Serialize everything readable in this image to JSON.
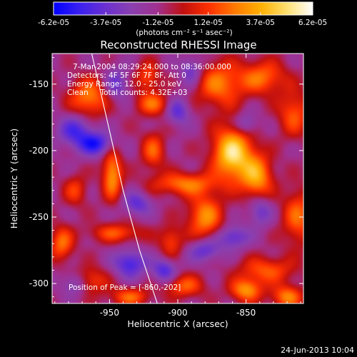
{
  "chart_data": {
    "type": "heatmap",
    "title": "Reconstructed RHESSI Image",
    "xlabel": "Heliocentric X (arcsec)",
    "ylabel": "Heliocentric Y (arcsec)",
    "xlim": [
      -992,
      -808
    ],
    "ylim": [
      -315,
      -127
    ],
    "xticks": [
      -950,
      -900,
      -850
    ],
    "yticks": [
      -150,
      -200,
      -250,
      -300
    ],
    "xtick_labels": [
      "-950",
      "-900",
      "-850"
    ],
    "ytick_labels": [
      "-150",
      "-200",
      "-250",
      "-300"
    ],
    "colorbar": {
      "min": -6.2e-05,
      "max": 6.2e-05,
      "ticks": [
        -6.2e-05,
        -3.7e-05,
        -1.2e-05,
        1.2e-05,
        3.7e-05,
        6.2e-05
      ],
      "tick_labels": [
        "-6.2e-05",
        "-3.7e-05",
        "-1.2e-05",
        "1.2e-05",
        "3.7e-05",
        "6.2e-05"
      ],
      "unit_label": "(photons cm⁻² s⁻¹ asec⁻²)"
    },
    "annotations": [
      "7-Mar-2004 08:29:24.000 to 08:36:00.000",
      "Detectors: 4F 5F 6F 7F 8F, Att 0",
      "Energy Range: 12.0 - 25.0 keV",
      "Clean     Total counts: 4.32E+03"
    ],
    "peak": {
      "label": "Position of Peak = [-860,-202]",
      "x": -860,
      "y": -202
    },
    "limb": [
      [
        -963,
        -127
      ],
      [
        -950,
        -185
      ],
      [
        -940,
        -230
      ],
      [
        -928,
        -275
      ],
      [
        -915,
        -315
      ]
    ],
    "sources": [
      {
        "x": -860,
        "y": -202,
        "sx": 10,
        "sy": 14,
        "a": 6.2e-05
      },
      {
        "x": -842,
        "y": -220,
        "sx": 8,
        "sy": 12,
        "a": 4.4e-05
      },
      {
        "x": -880,
        "y": -250,
        "sx": 9,
        "sy": 12,
        "a": 4e-05
      },
      {
        "x": -948,
        "y": -218,
        "sx": 5,
        "sy": 13,
        "a": 4.4e-05
      },
      {
        "x": -895,
        "y": -225,
        "sx": 16,
        "sy": 6,
        "a": 3.6e-05
      },
      {
        "x": -918,
        "y": -200,
        "sx": 6,
        "sy": 10,
        "a": 3e-05
      },
      {
        "x": -918,
        "y": -165,
        "sx": 9,
        "sy": 6,
        "a": 3.2e-05
      },
      {
        "x": -922,
        "y": -145,
        "sx": 6,
        "sy": 8,
        "a": 2.8e-05
      },
      {
        "x": -965,
        "y": -160,
        "sx": 10,
        "sy": 10,
        "a": 3.8e-05
      },
      {
        "x": -870,
        "y": -150,
        "sx": 12,
        "sy": 12,
        "a": 3.6e-05
      },
      {
        "x": -838,
        "y": -145,
        "sx": 12,
        "sy": 9,
        "a": 3.4e-05
      },
      {
        "x": -815,
        "y": -172,
        "sx": 8,
        "sy": 12,
        "a": 3e-05
      },
      {
        "x": -812,
        "y": -250,
        "sx": 8,
        "sy": 15,
        "a": 3.2e-05
      },
      {
        "x": -835,
        "y": -290,
        "sx": 14,
        "sy": 7,
        "a": 3e-05
      },
      {
        "x": -850,
        "y": -305,
        "sx": 8,
        "sy": 6,
        "a": 4.2e-05
      },
      {
        "x": -820,
        "y": -310,
        "sx": 8,
        "sy": 6,
        "a": 3.8e-05
      },
      {
        "x": -985,
        "y": -270,
        "sx": 6,
        "sy": 9,
        "a": 3.4e-05
      },
      {
        "x": -975,
        "y": -230,
        "sx": 6,
        "sy": 8,
        "a": 2.4e-05
      },
      {
        "x": -945,
        "y": -262,
        "sx": 14,
        "sy": 5,
        "a": 2.8e-05
      },
      {
        "x": -905,
        "y": -268,
        "sx": 6,
        "sy": 8,
        "a": 2.6e-05
      },
      {
        "x": -965,
        "y": -298,
        "sx": 9,
        "sy": 7,
        "a": 3e-05
      },
      {
        "x": -935,
        "y": -310,
        "sx": 10,
        "sy": 5,
        "a": 3.2e-05
      },
      {
        "x": -895,
        "y": -302,
        "sx": 10,
        "sy": 6,
        "a": 3e-05
      },
      {
        "x": -960,
        "y": -195,
        "sx": 9,
        "sy": 6,
        "a": -4e-05
      },
      {
        "x": -975,
        "y": -185,
        "sx": 9,
        "sy": 8,
        "a": -3.2e-05
      },
      {
        "x": -930,
        "y": -240,
        "sx": 7,
        "sy": 6,
        "a": -2.8e-05
      },
      {
        "x": -935,
        "y": -285,
        "sx": 8,
        "sy": 7,
        "a": -3.6e-05
      },
      {
        "x": -910,
        "y": -290,
        "sx": 6,
        "sy": 6,
        "a": -3.2e-05
      },
      {
        "x": -880,
        "y": -275,
        "sx": 8,
        "sy": 6,
        "a": -3e-05
      },
      {
        "x": -860,
        "y": -265,
        "sx": 8,
        "sy": 6,
        "a": -3e-05
      },
      {
        "x": -840,
        "y": -245,
        "sx": 6,
        "sy": 8,
        "a": -2.6e-05
      },
      {
        "x": -900,
        "y": -170,
        "sx": 6,
        "sy": 7,
        "a": -3e-05
      },
      {
        "x": -890,
        "y": -140,
        "sx": 6,
        "sy": 8,
        "a": -2.6e-05
      },
      {
        "x": -975,
        "y": -300,
        "sx": 7,
        "sy": 6,
        "a": -2.8e-05
      },
      {
        "x": -850,
        "y": -180,
        "sx": 6,
        "sy": 6,
        "a": -2.4e-05
      },
      {
        "x": -945,
        "y": -150,
        "sx": 6,
        "sy": 9,
        "a": -2.4e-05
      }
    ]
  },
  "footer": {
    "date": "24-Jun-2013 10:04"
  },
  "colors": {
    "background": "#000000",
    "text": "#ffffff",
    "limb": "#ffffff"
  },
  "colormap": [
    "#0000ff",
    "#3a20f0",
    "#6a30d0",
    "#8a40b0",
    "#a03090",
    "#c01010",
    "#ff3000",
    "#ff7a00",
    "#ffb000",
    "#ffe070",
    "#ffffff"
  ]
}
